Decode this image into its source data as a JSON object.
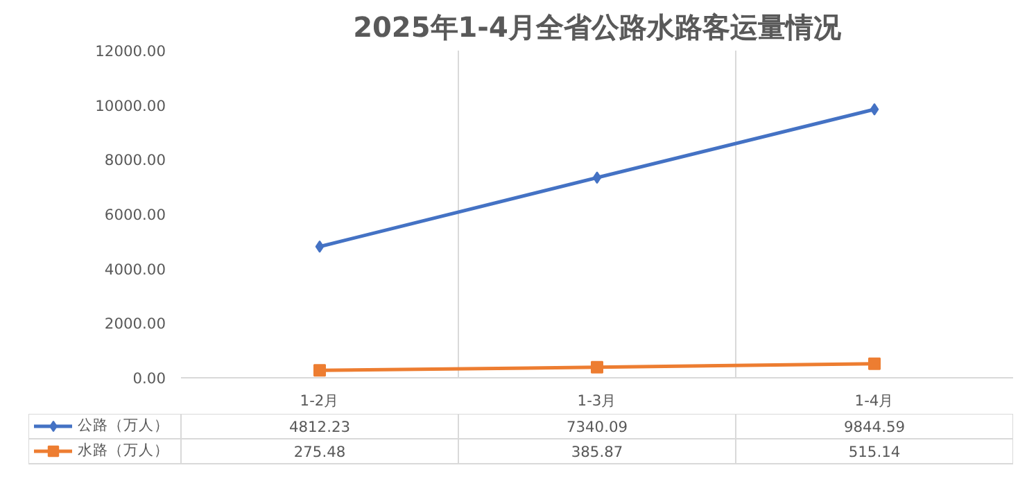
{
  "chart_data": {
    "type": "line",
    "title": "2025年1-4月全省公路水路客运量情况",
    "categories": [
      "1-2月",
      "1-3月",
      "1-4月"
    ],
    "series": [
      {
        "name": "公路（万人）",
        "color": "#4472c4",
        "marker": "diamond",
        "values": [
          4812.23,
          7340.09,
          9844.59
        ]
      },
      {
        "name": "水路（万人）",
        "color": "#ed7d31",
        "marker": "square",
        "values": [
          275.48,
          385.87,
          515.14
        ]
      }
    ],
    "ylim": [
      0,
      12000
    ],
    "yticks": [
      {
        "value": 0,
        "label": "0.00"
      },
      {
        "value": 2000,
        "label": "2000.00"
      },
      {
        "value": 4000,
        "label": "4000.00"
      },
      {
        "value": 6000,
        "label": "6000.00"
      },
      {
        "value": 8000,
        "label": "8000.00"
      },
      {
        "value": 10000,
        "label": "10000.00"
      },
      {
        "value": 12000,
        "label": "12000.00"
      }
    ],
    "grid": "x",
    "legend": "bottom",
    "data_labels": true,
    "line_style": "solid"
  }
}
